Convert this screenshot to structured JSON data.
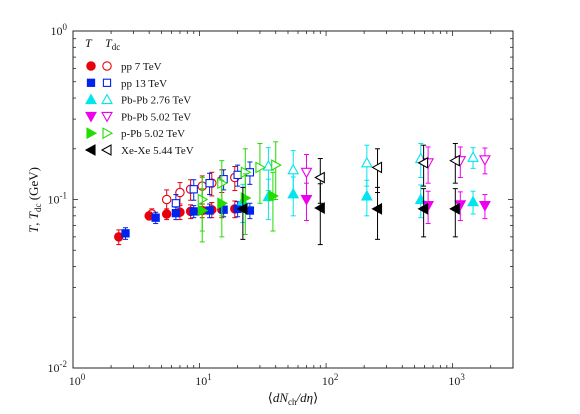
{
  "chart_data": {
    "type": "scatter",
    "xscale": "log",
    "yscale": "log",
    "xlim": [
      1,
      3000
    ],
    "ylim": [
      0.01,
      1
    ],
    "xlabel": "⟨dNch/dη⟩",
    "ylabel": "T, Tdc (GeV)",
    "x_ticks": [
      {
        "value": 1,
        "base": "10",
        "exp": "0"
      },
      {
        "value": 10,
        "base": "10",
        "exp": "1"
      },
      {
        "value": 100,
        "base": "10",
        "exp": "2"
      },
      {
        "value": 1000,
        "base": "10",
        "exp": "3"
      }
    ],
    "y_ticks": [
      {
        "value": 0.01,
        "base": "10",
        "exp": "-2"
      },
      {
        "value": 0.1,
        "base": "10",
        "exp": "-1"
      },
      {
        "value": 1,
        "base": "10",
        "exp": "0"
      }
    ],
    "legend": {
      "position": "top-left",
      "column_headers": [
        "T",
        "Tdc"
      ]
    },
    "series": [
      {
        "name": "pp 7 TeV",
        "color": "#e8000b",
        "marker": "circle",
        "T": [
          [
            2.3,
            0.06,
            0.006
          ],
          [
            4.0,
            0.08,
            0.004
          ],
          [
            5.5,
            0.082,
            0.006
          ],
          [
            7.0,
            0.084,
            0.008
          ],
          [
            8.5,
            0.085,
            0.008
          ],
          [
            10.5,
            0.086,
            0.008
          ],
          [
            12.5,
            0.087,
            0.009
          ],
          [
            15.0,
            0.087,
            0.009
          ],
          [
            19.0,
            0.088,
            0.01
          ]
        ],
        "Tdc": [
          [
            4.2,
            0.082,
            0.006
          ],
          [
            5.5,
            0.1,
            0.014
          ],
          [
            7.0,
            0.11,
            0.016
          ],
          [
            8.5,
            0.115,
            0.016
          ],
          [
            10.5,
            0.12,
            0.018
          ],
          [
            12.5,
            0.125,
            0.02
          ],
          [
            15.0,
            0.13,
            0.02
          ],
          [
            19.0,
            0.135,
            0.022
          ]
        ]
      },
      {
        "name": "pp 13 TeV",
        "color": "#0022ee",
        "marker": "square",
        "T": [
          [
            2.6,
            0.063,
            0.005
          ],
          [
            4.5,
            0.078,
            0.006
          ],
          [
            6.5,
            0.083,
            0.007
          ],
          [
            9.0,
            0.085,
            0.007
          ],
          [
            12.0,
            0.086,
            0.008
          ],
          [
            15.5,
            0.087,
            0.008
          ],
          [
            20.0,
            0.088,
            0.009
          ],
          [
            25.0,
            0.086,
            0.009
          ]
        ],
        "Tdc": [
          [
            6.5,
            0.095,
            0.012
          ],
          [
            9.0,
            0.115,
            0.016
          ],
          [
            12.0,
            0.125,
            0.018
          ],
          [
            15.5,
            0.132,
            0.018
          ],
          [
            20.0,
            0.14,
            0.02
          ],
          [
            25.0,
            0.145,
            0.022
          ]
        ]
      },
      {
        "name": "Pb-Pb 2.76 TeV",
        "color": "#00e5ee",
        "marker": "triangle-up",
        "T": [
          [
            22.0,
            0.098,
            0.025
          ],
          [
            35.0,
            0.104,
            0.028
          ],
          [
            55.0,
            0.108,
            0.028
          ],
          [
            210.0,
            0.105,
            0.025
          ],
          [
            560.0,
            0.1,
            0.022
          ],
          [
            1450.0,
            0.097,
            0.015
          ]
        ],
        "Tdc": [
          [
            35.0,
            0.158,
            0.045
          ],
          [
            55.0,
            0.15,
            0.045
          ],
          [
            210.0,
            0.165,
            0.045
          ],
          [
            560.0,
            0.175,
            0.04
          ],
          [
            1450.0,
            0.178,
            0.025
          ]
        ]
      },
      {
        "name": "Pb-Pb 5.02 TeV",
        "color": "#ee00ee",
        "marker": "triangle-down",
        "T": [
          [
            70.0,
            0.1,
            0.025
          ],
          [
            640.0,
            0.092,
            0.02
          ],
          [
            1150.0,
            0.093,
            0.018
          ],
          [
            1800.0,
            0.092,
            0.015
          ]
        ],
        "Tdc": [
          [
            70.0,
            0.145,
            0.04
          ],
          [
            640.0,
            0.165,
            0.04
          ],
          [
            1150.0,
            0.17,
            0.035
          ],
          [
            1800.0,
            0.172,
            0.03
          ]
        ]
      },
      {
        "name": "p-Pb 5.02 TeV",
        "color": "#22dd00",
        "marker": "triangle-right",
        "T": [
          [
            10.5,
            0.086,
            0.03
          ],
          [
            15.0,
            0.095,
            0.035
          ],
          [
            23.0,
            0.102,
            0.04
          ],
          [
            38.0,
            0.105,
            0.04
          ]
        ],
        "Tdc": [
          [
            10.5,
            0.1,
            0.035
          ],
          [
            15.0,
            0.125,
            0.045
          ],
          [
            23.0,
            0.145,
            0.055
          ],
          [
            30.0,
            0.155,
            0.06
          ],
          [
            40.0,
            0.16,
            0.06
          ]
        ]
      },
      {
        "name": "Xe-Xe 5.44 TeV",
        "color": "#000000",
        "marker": "triangle-left",
        "T": [
          [
            22.0,
            0.088,
            0.03
          ],
          [
            90.0,
            0.089,
            0.035
          ],
          [
            255.0,
            0.088,
            0.03
          ],
          [
            590.0,
            0.088,
            0.028
          ],
          [
            1050.0,
            0.088,
            0.028
          ]
        ],
        "Tdc": [
          [
            90.0,
            0.135,
            0.04
          ],
          [
            255.0,
            0.155,
            0.045
          ],
          [
            590.0,
            0.165,
            0.045
          ],
          [
            1050.0,
            0.17,
            0.045
          ]
        ]
      }
    ]
  }
}
